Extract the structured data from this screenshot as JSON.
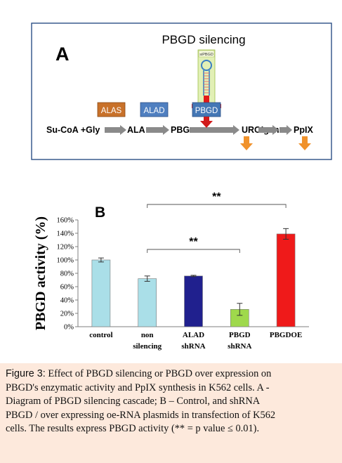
{
  "panel_a": {
    "label": "A",
    "title": "PBGD silencing",
    "sirna_label": "siPBGD",
    "enzymes": [
      {
        "name": "ALAS",
        "color": "#c8712a"
      },
      {
        "name": "ALAD",
        "color": "#4f7fc0"
      },
      {
        "name": "PBGD",
        "color": "#4477b5"
      }
    ],
    "pathway": [
      "Su-CoA +Gly",
      "ALA",
      "PBG",
      "URO’gen",
      "PpIX"
    ],
    "colors": {
      "inhibitor": "#e11a1a",
      "arrow": "#8a8a8a",
      "output_arrow": "#f0922c",
      "frame": "#2c4f86"
    }
  },
  "chart_data": {
    "type": "bar",
    "panel_label": "B",
    "title": "",
    "ylabel": "PBGD activity (%)",
    "xlabel": "",
    "ylim": [
      0,
      160
    ],
    "yticks": [
      "0%",
      "20%",
      "40%",
      "60%",
      "80%",
      "100%",
      "120%",
      "140%",
      "160%"
    ],
    "grid": false,
    "categories": [
      {
        "line1": "control",
        "line2": ""
      },
      {
        "line1": "non",
        "line2": "silencing"
      },
      {
        "line1": "ALAD",
        "line2": "shRNA"
      },
      {
        "line1": "PBGD",
        "line2": "shRNA"
      },
      {
        "line1": "PBGDOE",
        "line2": ""
      }
    ],
    "values": [
      100,
      72,
      76,
      26,
      139
    ],
    "errors": [
      3,
      4,
      1,
      9,
      8
    ],
    "bar_colors": [
      "#aadfe8",
      "#aadfe8",
      "#20208e",
      "#9fd94c",
      "#ef1a1a"
    ],
    "annotations": [
      {
        "text": "**",
        "from": 1,
        "to": 3
      },
      {
        "text": "**",
        "from": 1,
        "to": 4
      }
    ]
  },
  "caption": {
    "lead": "Figure 3:",
    "lines": [
      " Effect of PBGD silencing or PBGD over expression on",
      "PBGD's enzymatic activity and PpIX synthesis in K562 cells. A -",
      "Diagram of PBGD silencing cascade; B – Control, and shRNA",
      "PBGD / over expressing oe-RNA plasmids in transfection of K562",
      "cells. The results express PBGD activity (** = p value ≤ 0.01)."
    ]
  }
}
